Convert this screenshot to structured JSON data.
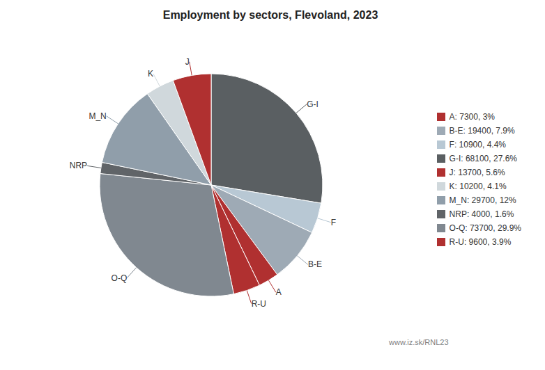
{
  "chart_data": {
    "type": "pie",
    "title": "Employment by sectors, Flevoland, 2023",
    "categories": [
      "G-I",
      "F",
      "B-E",
      "A",
      "R-U",
      "O-Q",
      "NRP",
      "M_N",
      "K",
      "J"
    ],
    "values": [
      68100,
      10900,
      19400,
      7300,
      9600,
      73700,
      4000,
      29700,
      10200,
      13700
    ],
    "colors": [
      "#5a5f62",
      "#b8c8d4",
      "#9eaab5",
      "#b03030",
      "#b03030",
      "#808890",
      "#606468",
      "#909eaa",
      "#d0d8dc",
      "#b03030"
    ],
    "legend": "right",
    "legend_entries": [
      {
        "label": "A: 7300, 3%",
        "color": "#b03030"
      },
      {
        "label": "B-E: 19400, 7.9%",
        "color": "#9eaab5"
      },
      {
        "label": "F: 10900, 4.4%",
        "color": "#b8c8d4"
      },
      {
        "label": "G-I: 68100, 27.6%",
        "color": "#5a5f62"
      },
      {
        "label": "J: 13700, 5.6%",
        "color": "#b03030"
      },
      {
        "label": "K: 10200, 4.1%",
        "color": "#d0d8dc"
      },
      {
        "label": "M_N: 29700, 12%",
        "color": "#909eaa"
      },
      {
        "label": "NRP: 4000, 1.6%",
        "color": "#606468"
      },
      {
        "label": "O-Q: 73700, 29.9%",
        "color": "#808890"
      },
      {
        "label": "R-U: 9600, 3.9%",
        "color": "#b03030"
      }
    ],
    "annotations": [
      "www.iz.sk/RNL23"
    ]
  }
}
